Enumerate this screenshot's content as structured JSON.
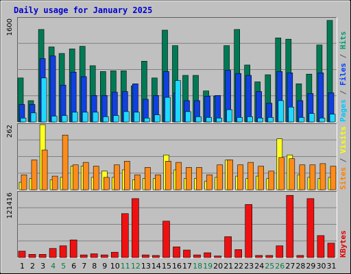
{
  "chart_data": {
    "type": "bar",
    "title": "Daily usage for January 2025",
    "x": [
      1,
      2,
      3,
      4,
      5,
      6,
      7,
      8,
      9,
      10,
      11,
      12,
      13,
      14,
      15,
      16,
      17,
      18,
      19,
      20,
      21,
      22,
      23,
      24,
      25,
      26,
      27,
      28,
      29,
      30,
      31
    ],
    "weekend_days": [
      4,
      5,
      11,
      12,
      18,
      19,
      25,
      26
    ],
    "panels": [
      {
        "key": "top",
        "ymax_label": "1600",
        "ylim": [
          0,
          1600
        ],
        "side_label_parts": [
          {
            "text": "Pages",
            "color": "#00c8ff"
          },
          {
            "text": " / ",
            "color": "#555555"
          },
          {
            "text": "Files",
            "color": "#0040ff"
          },
          {
            "text": " / ",
            "color": "#555555"
          },
          {
            "text": "Hits",
            "color": "#009e6a"
          }
        ],
        "series": [
          {
            "name": "Hits",
            "color": "#007a55",
            "values": [
              680,
              330,
              1430,
              1160,
              1060,
              1130,
              1170,
              870,
              780,
              790,
              790,
              560,
              940,
              680,
              1420,
              1180,
              720,
              720,
              480,
              400,
              1180,
              1430,
              880,
              620,
              730,
              1300,
              1280,
              590,
              740,
              1190,
              1570
            ]
          },
          {
            "name": "Files",
            "color": "#1040e0",
            "values": [
              270,
              270,
              980,
              1020,
              570,
              770,
              700,
              410,
              410,
              460,
              470,
              590,
              350,
              410,
              780,
              450,
              330,
              330,
              400,
              410,
              800,
              750,
              720,
              470,
              290,
              780,
              760,
              330,
              440,
              760,
              450
            ]
          },
          {
            "name": "Pages",
            "color": "#20d8ff",
            "values": [
              60,
              140,
              680,
              90,
              100,
              150,
              150,
              150,
              80,
              100,
              160,
              150,
              60,
              110,
              380,
              640,
              160,
              80,
              70,
              60,
              190,
              70,
              80,
              60,
              70,
              330,
              230,
              70,
              130,
              60,
              120
            ]
          }
        ]
      },
      {
        "key": "middle",
        "ymax_label": "262",
        "ylim": [
          0,
          262
        ],
        "side_label_parts": [
          {
            "text": "Sites",
            "color": "#ff8000"
          },
          {
            "text": " / ",
            "color": "#555555"
          },
          {
            "text": "Visits",
            "color": "#ffff00"
          }
        ],
        "series": [
          {
            "name": "Visits",
            "color": "#ffff20",
            "values": [
              30,
              45,
              262,
              40,
              50,
              95,
              95,
              50,
              75,
              50,
              80,
              40,
              45,
              45,
              140,
              80,
              45,
              45,
              35,
              50,
              120,
              55,
              45,
              55,
              45,
              205,
              140,
              60,
              50,
              45,
              50
            ]
          },
          {
            "name": "Sites",
            "color": "#ff8c1a",
            "values": [
              60,
              120,
              160,
              55,
              220,
              100,
              110,
              95,
              50,
              100,
              115,
              60,
              90,
              60,
              115,
              110,
              90,
              90,
              60,
              100,
              120,
              100,
              110,
              95,
              75,
              130,
              125,
              100,
              100,
              105,
              95
            ]
          }
        ]
      },
      {
        "key": "bottom",
        "ymax_label": "121416",
        "ylim": [
          0,
          121416
        ],
        "side_label_parts": [
          {
            "text": "KBytes",
            "color": "#e00000"
          }
        ],
        "series": [
          {
            "name": "KBytes",
            "color": "#ee1111",
            "values": [
              12000,
              6000,
              6000,
              17000,
              22000,
              33000,
              5000,
              7000,
              5000,
              10000,
              82000,
              110000,
              5000,
              4000,
              68000,
              20000,
              14000,
              5000,
              9000,
              3000,
              39000,
              15000,
              99000,
              4000,
              4000,
              22000,
              116000,
              4000,
              110000,
              41000,
              27000
            ]
          }
        ]
      }
    ]
  }
}
